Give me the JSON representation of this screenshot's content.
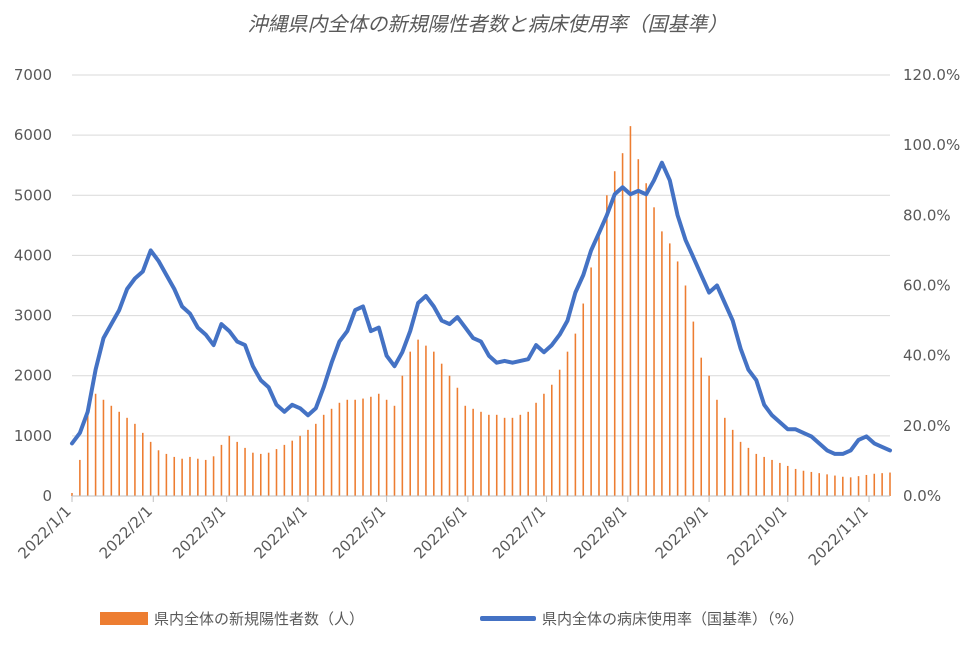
{
  "chart_data": {
    "type": "bar+line",
    "title": "沖縄県内全体の新規陽性者数と病床使用率（国基準）",
    "xlabel": "",
    "ylabel": "",
    "y_left": {
      "range": [
        0,
        7000
      ],
      "ticks": [
        "0",
        "1000",
        "2000",
        "3000",
        "4000",
        "5000",
        "6000",
        "7000"
      ]
    },
    "y_right": {
      "range": [
        0,
        1.2
      ],
      "ticks": [
        "0.0%",
        "20.0%",
        "40.0%",
        "60.0%",
        "80.0%",
        "100.0%",
        "120.0%"
      ]
    },
    "x_range": [
      "2022-01-01",
      "2022-11-09"
    ],
    "x_ticks": [
      {
        "date": "2022-01-01",
        "label": "2022/1/1"
      },
      {
        "date": "2022-02-01",
        "label": "2022/2/1"
      },
      {
        "date": "2022-03-01",
        "label": "2022/3/1"
      },
      {
        "date": "2022-04-01",
        "label": "2022/4/1"
      },
      {
        "date": "2022-05-01",
        "label": "2022/5/1"
      },
      {
        "date": "2022-06-01",
        "label": "2022/6/1"
      },
      {
        "date": "2022-07-01",
        "label": "2022/7/1"
      },
      {
        "date": "2022-08-01",
        "label": "2022/8/1"
      },
      {
        "date": "2022-09-01",
        "label": "2022/9/1"
      },
      {
        "date": "2022-10-01",
        "label": "2022/10/1"
      },
      {
        "date": "2022-11-01",
        "label": "2022/11/1"
      }
    ],
    "grid": true,
    "legend_position": "bottom",
    "series": [
      {
        "name": "県内全体の新規陽性者数（人）",
        "type": "bar",
        "axis": "left",
        "color": "#ED7D31",
        "points": [
          {
            "x": "2022-01-01",
            "y": 50
          },
          {
            "x": "2022-01-04",
            "y": 600
          },
          {
            "x": "2022-01-07",
            "y": 1500
          },
          {
            "x": "2022-01-10",
            "y": 1700
          },
          {
            "x": "2022-01-13",
            "y": 1600
          },
          {
            "x": "2022-01-16",
            "y": 1500
          },
          {
            "x": "2022-01-19",
            "y": 1400
          },
          {
            "x": "2022-01-22",
            "y": 1300
          },
          {
            "x": "2022-01-25",
            "y": 1200
          },
          {
            "x": "2022-01-28",
            "y": 1050
          },
          {
            "x": "2022-01-31",
            "y": 900
          },
          {
            "x": "2022-02-03",
            "y": 760
          },
          {
            "x": "2022-02-06",
            "y": 700
          },
          {
            "x": "2022-02-09",
            "y": 650
          },
          {
            "x": "2022-02-12",
            "y": 620
          },
          {
            "x": "2022-02-15",
            "y": 650
          },
          {
            "x": "2022-02-18",
            "y": 620
          },
          {
            "x": "2022-02-21",
            "y": 600
          },
          {
            "x": "2022-02-24",
            "y": 660
          },
          {
            "x": "2022-02-27",
            "y": 850
          },
          {
            "x": "2022-03-02",
            "y": 1000
          },
          {
            "x": "2022-03-05",
            "y": 900
          },
          {
            "x": "2022-03-08",
            "y": 800
          },
          {
            "x": "2022-03-11",
            "y": 720
          },
          {
            "x": "2022-03-14",
            "y": 700
          },
          {
            "x": "2022-03-17",
            "y": 720
          },
          {
            "x": "2022-03-20",
            "y": 780
          },
          {
            "x": "2022-03-23",
            "y": 850
          },
          {
            "x": "2022-03-26",
            "y": 920
          },
          {
            "x": "2022-03-29",
            "y": 1000
          },
          {
            "x": "2022-04-01",
            "y": 1100
          },
          {
            "x": "2022-04-04",
            "y": 1200
          },
          {
            "x": "2022-04-07",
            "y": 1350
          },
          {
            "x": "2022-04-10",
            "y": 1450
          },
          {
            "x": "2022-04-13",
            "y": 1550
          },
          {
            "x": "2022-04-16",
            "y": 1600
          },
          {
            "x": "2022-04-19",
            "y": 1600
          },
          {
            "x": "2022-04-22",
            "y": 1620
          },
          {
            "x": "2022-04-25",
            "y": 1650
          },
          {
            "x": "2022-04-28",
            "y": 1700
          },
          {
            "x": "2022-05-01",
            "y": 1600
          },
          {
            "x": "2022-05-04",
            "y": 1500
          },
          {
            "x": "2022-05-07",
            "y": 2000
          },
          {
            "x": "2022-05-10",
            "y": 2400
          },
          {
            "x": "2022-05-13",
            "y": 2600
          },
          {
            "x": "2022-05-16",
            "y": 2500
          },
          {
            "x": "2022-05-19",
            "y": 2400
          },
          {
            "x": "2022-05-22",
            "y": 2200
          },
          {
            "x": "2022-05-25",
            "y": 2000
          },
          {
            "x": "2022-05-28",
            "y": 1800
          },
          {
            "x": "2022-05-31",
            "y": 1500
          },
          {
            "x": "2022-06-03",
            "y": 1450
          },
          {
            "x": "2022-06-06",
            "y": 1400
          },
          {
            "x": "2022-06-09",
            "y": 1350
          },
          {
            "x": "2022-06-12",
            "y": 1350
          },
          {
            "x": "2022-06-15",
            "y": 1300
          },
          {
            "x": "2022-06-18",
            "y": 1300
          },
          {
            "x": "2022-06-21",
            "y": 1350
          },
          {
            "x": "2022-06-24",
            "y": 1400
          },
          {
            "x": "2022-06-27",
            "y": 1550
          },
          {
            "x": "2022-06-30",
            "y": 1700
          },
          {
            "x": "2022-07-03",
            "y": 1850
          },
          {
            "x": "2022-07-06",
            "y": 2100
          },
          {
            "x": "2022-07-09",
            "y": 2400
          },
          {
            "x": "2022-07-12",
            "y": 2700
          },
          {
            "x": "2022-07-15",
            "y": 3200
          },
          {
            "x": "2022-07-18",
            "y": 3800
          },
          {
            "x": "2022-07-21",
            "y": 4400
          },
          {
            "x": "2022-07-24",
            "y": 5000
          },
          {
            "x": "2022-07-27",
            "y": 5400
          },
          {
            "x": "2022-07-30",
            "y": 5700
          },
          {
            "x": "2022-08-02",
            "y": 6150
          },
          {
            "x": "2022-08-05",
            "y": 5600
          },
          {
            "x": "2022-08-08",
            "y": 5200
          },
          {
            "x": "2022-08-11",
            "y": 4800
          },
          {
            "x": "2022-08-14",
            "y": 4400
          },
          {
            "x": "2022-08-17",
            "y": 4200
          },
          {
            "x": "2022-08-20",
            "y": 3900
          },
          {
            "x": "2022-08-23",
            "y": 3500
          },
          {
            "x": "2022-08-26",
            "y": 2900
          },
          {
            "x": "2022-08-29",
            "y": 2300
          },
          {
            "x": "2022-09-01",
            "y": 2000
          },
          {
            "x": "2022-09-04",
            "y": 1600
          },
          {
            "x": "2022-09-07",
            "y": 1300
          },
          {
            "x": "2022-09-10",
            "y": 1100
          },
          {
            "x": "2022-09-13",
            "y": 900
          },
          {
            "x": "2022-09-16",
            "y": 800
          },
          {
            "x": "2022-09-19",
            "y": 700
          },
          {
            "x": "2022-09-22",
            "y": 650
          },
          {
            "x": "2022-09-25",
            "y": 600
          },
          {
            "x": "2022-09-28",
            "y": 550
          },
          {
            "x": "2022-10-01",
            "y": 500
          },
          {
            "x": "2022-10-04",
            "y": 450
          },
          {
            "x": "2022-10-07",
            "y": 420
          },
          {
            "x": "2022-10-10",
            "y": 400
          },
          {
            "x": "2022-10-13",
            "y": 380
          },
          {
            "x": "2022-10-16",
            "y": 360
          },
          {
            "x": "2022-10-19",
            "y": 340
          },
          {
            "x": "2022-10-22",
            "y": 320
          },
          {
            "x": "2022-10-25",
            "y": 310
          },
          {
            "x": "2022-10-28",
            "y": 330
          },
          {
            "x": "2022-10-31",
            "y": 350
          },
          {
            "x": "2022-11-03",
            "y": 370
          },
          {
            "x": "2022-11-06",
            "y": 380
          },
          {
            "x": "2022-11-09",
            "y": 390
          }
        ]
      },
      {
        "name": "県内全体の病床使用率（国基準）（%）",
        "type": "line",
        "axis": "right",
        "color": "#4472C4",
        "points": [
          {
            "x": "2022-01-01",
            "y": 0.15
          },
          {
            "x": "2022-01-04",
            "y": 0.18
          },
          {
            "x": "2022-01-07",
            "y": 0.24
          },
          {
            "x": "2022-01-10",
            "y": 0.36
          },
          {
            "x": "2022-01-13",
            "y": 0.45
          },
          {
            "x": "2022-01-16",
            "y": 0.49
          },
          {
            "x": "2022-01-19",
            "y": 0.53
          },
          {
            "x": "2022-01-22",
            "y": 0.59
          },
          {
            "x": "2022-01-25",
            "y": 0.62
          },
          {
            "x": "2022-01-28",
            "y": 0.64
          },
          {
            "x": "2022-01-31",
            "y": 0.7
          },
          {
            "x": "2022-02-03",
            "y": 0.67
          },
          {
            "x": "2022-02-06",
            "y": 0.63
          },
          {
            "x": "2022-02-09",
            "y": 0.59
          },
          {
            "x": "2022-02-12",
            "y": 0.54
          },
          {
            "x": "2022-02-15",
            "y": 0.52
          },
          {
            "x": "2022-02-18",
            "y": 0.48
          },
          {
            "x": "2022-02-21",
            "y": 0.46
          },
          {
            "x": "2022-02-24",
            "y": 0.43
          },
          {
            "x": "2022-02-27",
            "y": 0.49
          },
          {
            "x": "2022-03-02",
            "y": 0.47
          },
          {
            "x": "2022-03-05",
            "y": 0.44
          },
          {
            "x": "2022-03-08",
            "y": 0.43
          },
          {
            "x": "2022-03-11",
            "y": 0.37
          },
          {
            "x": "2022-03-14",
            "y": 0.33
          },
          {
            "x": "2022-03-17",
            "y": 0.31
          },
          {
            "x": "2022-03-20",
            "y": 0.26
          },
          {
            "x": "2022-03-23",
            "y": 0.24
          },
          {
            "x": "2022-03-26",
            "y": 0.26
          },
          {
            "x": "2022-03-29",
            "y": 0.25
          },
          {
            "x": "2022-04-01",
            "y": 0.23
          },
          {
            "x": "2022-04-04",
            "y": 0.25
          },
          {
            "x": "2022-04-07",
            "y": 0.31
          },
          {
            "x": "2022-04-10",
            "y": 0.38
          },
          {
            "x": "2022-04-13",
            "y": 0.44
          },
          {
            "x": "2022-04-16",
            "y": 0.47
          },
          {
            "x": "2022-04-19",
            "y": 0.53
          },
          {
            "x": "2022-04-22",
            "y": 0.54
          },
          {
            "x": "2022-04-25",
            "y": 0.47
          },
          {
            "x": "2022-04-28",
            "y": 0.48
          },
          {
            "x": "2022-05-01",
            "y": 0.4
          },
          {
            "x": "2022-05-04",
            "y": 0.37
          },
          {
            "x": "2022-05-07",
            "y": 0.41
          },
          {
            "x": "2022-05-10",
            "y": 0.47
          },
          {
            "x": "2022-05-13",
            "y": 0.55
          },
          {
            "x": "2022-05-16",
            "y": 0.57
          },
          {
            "x": "2022-05-19",
            "y": 0.54
          },
          {
            "x": "2022-05-22",
            "y": 0.5
          },
          {
            "x": "2022-05-25",
            "y": 0.49
          },
          {
            "x": "2022-05-28",
            "y": 0.51
          },
          {
            "x": "2022-05-31",
            "y": 0.48
          },
          {
            "x": "2022-06-03",
            "y": 0.45
          },
          {
            "x": "2022-06-06",
            "y": 0.44
          },
          {
            "x": "2022-06-09",
            "y": 0.4
          },
          {
            "x": "2022-06-12",
            "y": 0.38
          },
          {
            "x": "2022-06-15",
            "y": 0.385
          },
          {
            "x": "2022-06-18",
            "y": 0.38
          },
          {
            "x": "2022-06-21",
            "y": 0.385
          },
          {
            "x": "2022-06-24",
            "y": 0.39
          },
          {
            "x": "2022-06-27",
            "y": 0.43
          },
          {
            "x": "2022-06-30",
            "y": 0.41
          },
          {
            "x": "2022-07-03",
            "y": 0.43
          },
          {
            "x": "2022-07-06",
            "y": 0.46
          },
          {
            "x": "2022-07-09",
            "y": 0.5
          },
          {
            "x": "2022-07-12",
            "y": 0.58
          },
          {
            "x": "2022-07-15",
            "y": 0.63
          },
          {
            "x": "2022-07-18",
            "y": 0.7
          },
          {
            "x": "2022-07-21",
            "y": 0.75
          },
          {
            "x": "2022-07-24",
            "y": 0.8
          },
          {
            "x": "2022-07-27",
            "y": 0.86
          },
          {
            "x": "2022-07-30",
            "y": 0.88
          },
          {
            "x": "2022-08-02",
            "y": 0.86
          },
          {
            "x": "2022-08-05",
            "y": 0.87
          },
          {
            "x": "2022-08-08",
            "y": 0.86
          },
          {
            "x": "2022-08-11",
            "y": 0.9
          },
          {
            "x": "2022-08-14",
            "y": 0.95
          },
          {
            "x": "2022-08-17",
            "y": 0.9
          },
          {
            "x": "2022-08-20",
            "y": 0.8
          },
          {
            "x": "2022-08-23",
            "y": 0.73
          },
          {
            "x": "2022-08-26",
            "y": 0.68
          },
          {
            "x": "2022-08-29",
            "y": 0.63
          },
          {
            "x": "2022-09-01",
            "y": 0.58
          },
          {
            "x": "2022-09-04",
            "y": 0.6
          },
          {
            "x": "2022-09-07",
            "y": 0.55
          },
          {
            "x": "2022-09-10",
            "y": 0.5
          },
          {
            "x": "2022-09-13",
            "y": 0.42
          },
          {
            "x": "2022-09-16",
            "y": 0.36
          },
          {
            "x": "2022-09-19",
            "y": 0.33
          },
          {
            "x": "2022-09-22",
            "y": 0.26
          },
          {
            "x": "2022-09-25",
            "y": 0.23
          },
          {
            "x": "2022-09-28",
            "y": 0.21
          },
          {
            "x": "2022-10-01",
            "y": 0.19
          },
          {
            "x": "2022-10-04",
            "y": 0.19
          },
          {
            "x": "2022-10-07",
            "y": 0.18
          },
          {
            "x": "2022-10-10",
            "y": 0.17
          },
          {
            "x": "2022-10-13",
            "y": 0.15
          },
          {
            "x": "2022-10-16",
            "y": 0.13
          },
          {
            "x": "2022-10-19",
            "y": 0.12
          },
          {
            "x": "2022-10-22",
            "y": 0.12
          },
          {
            "x": "2022-10-25",
            "y": 0.13
          },
          {
            "x": "2022-10-28",
            "y": 0.16
          },
          {
            "x": "2022-10-31",
            "y": 0.17
          },
          {
            "x": "2022-11-03",
            "y": 0.15
          },
          {
            "x": "2022-11-06",
            "y": 0.14
          },
          {
            "x": "2022-11-09",
            "y": 0.13
          }
        ]
      }
    ]
  }
}
